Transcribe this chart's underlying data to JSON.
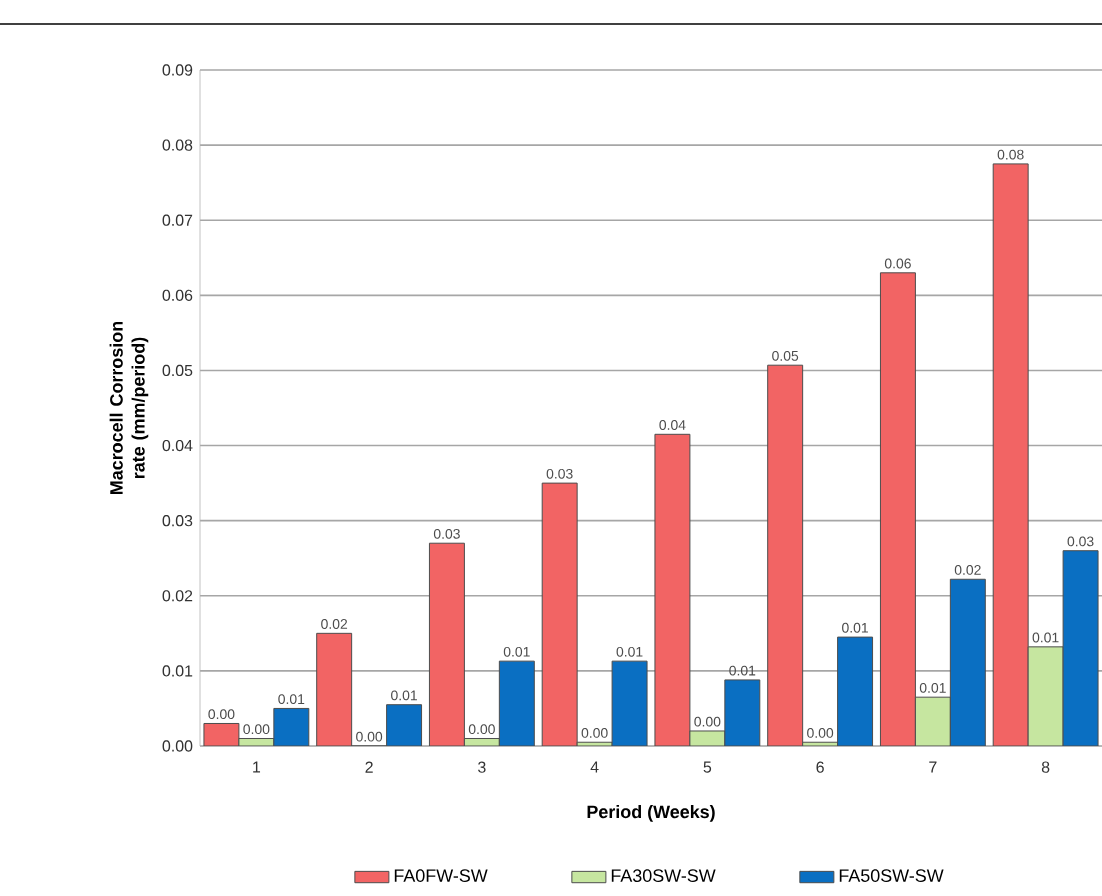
{
  "chart_data": {
    "type": "bar",
    "xlabel": "Period  (Weeks)",
    "ylabel": "Macrocell Corrosion rate (mm/period)",
    "categories": [
      "1",
      "2",
      "3",
      "4",
      "5",
      "6",
      "7",
      "8"
    ],
    "series": [
      {
        "name": "FA0FW-SW",
        "color": "#f26464",
        "values": [
          0.003,
          0.015,
          0.027,
          0.035,
          0.0415,
          0.0507,
          0.063,
          0.0775
        ],
        "value_labels": [
          "0.00",
          "0.02",
          "0.03",
          "0.03",
          "0.04",
          "0.05",
          "0.06",
          "0.08"
        ]
      },
      {
        "name": "FA30SW-SW",
        "color": "#c6e6a0",
        "values": [
          0.001,
          0.0,
          0.001,
          0.0005,
          0.002,
          0.0005,
          0.0065,
          0.0132
        ],
        "value_labels": [
          "0.00",
          "0.00",
          "0.00",
          "0.00",
          "0.00",
          "0.00",
          "0.01",
          "0.01"
        ]
      },
      {
        "name": "FA50SW-SW",
        "color": "#0a6fc2",
        "values": [
          0.005,
          0.0055,
          0.0113,
          0.0113,
          0.0088,
          0.0145,
          0.0222,
          0.026
        ],
        "value_labels": [
          "0.01",
          "0.01",
          "0.01",
          "0.01",
          "0.01",
          "0.01",
          "0.02",
          "0.03"
        ]
      }
    ],
    "ylim": [
      0,
      0.09
    ],
    "yticks": [
      {
        "value": 0,
        "label": "0.00"
      },
      {
        "value": 0.01,
        "label": "0.01"
      },
      {
        "value": 0.02,
        "label": "0.02"
      },
      {
        "value": 0.03,
        "label": "0.03"
      },
      {
        "value": 0.04,
        "label": "0.04"
      },
      {
        "value": 0.05,
        "label": "0.05"
      },
      {
        "value": 0.06,
        "label": "0.06"
      },
      {
        "value": 0.07,
        "label": "0.07"
      },
      {
        "value": 0.08,
        "label": "0.08"
      },
      {
        "value": 0.09,
        "label": "0.09"
      }
    ],
    "grid": "y",
    "legend": "bottom"
  }
}
